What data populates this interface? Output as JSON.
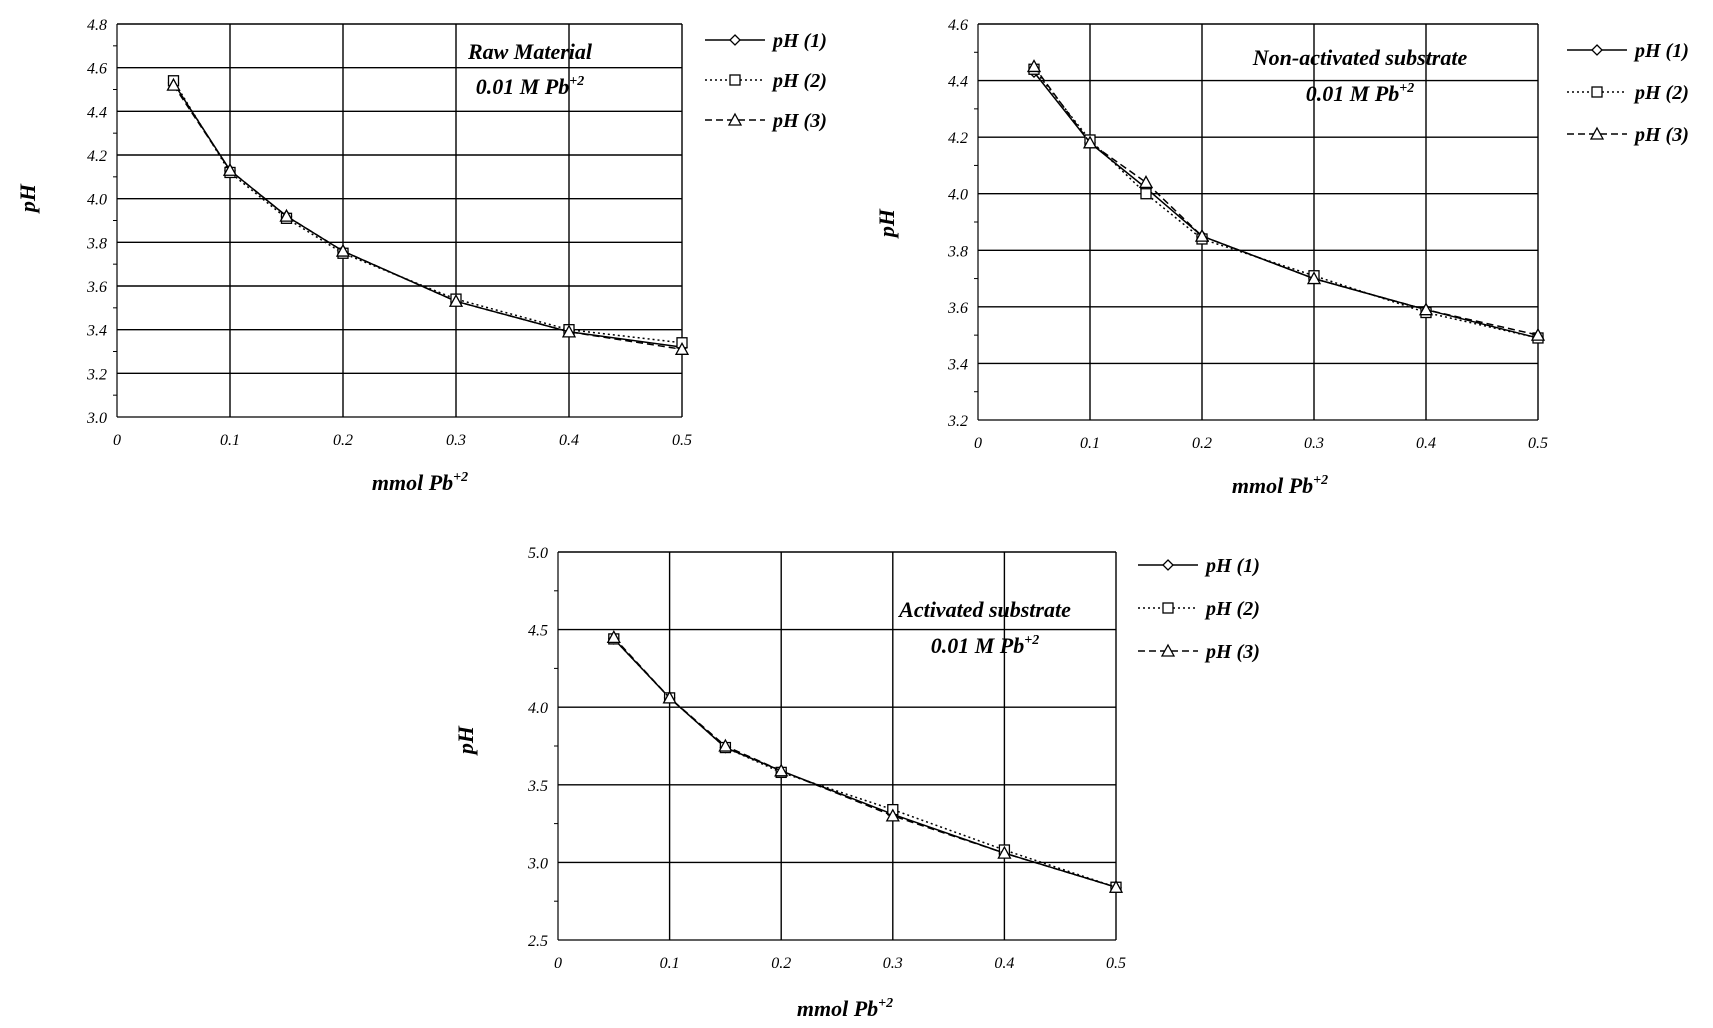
{
  "chart_data": [
    {
      "type": "line",
      "xlabel": "mmol Pb",
      "xlabel_sup": "+2",
      "ylabel": "pH",
      "xlim": [
        0,
        0.5
      ],
      "ylim": [
        3.0,
        4.8
      ],
      "xticks": [
        0,
        0.1,
        0.2,
        0.3,
        0.4,
        0.5
      ],
      "xtick_labels": [
        "0",
        "0.1",
        "0.2",
        "0.3",
        "0.4",
        "0.5"
      ],
      "yticks": [
        3.0,
        3.2,
        3.4,
        3.6,
        3.8,
        4.0,
        4.2,
        4.4,
        4.6,
        4.8
      ],
      "ytick_labels": [
        "3.0",
        "3.2",
        "3.4",
        "3.6",
        "3.8",
        "4.0",
        "4.2",
        "4.4",
        "4.6",
        "4.8"
      ],
      "grid": true,
      "legend_position": "right",
      "annotation_line1": "Raw Material",
      "annotation_line2": "0.01 M Pb",
      "annotation_sup": "+2",
      "x": [
        0.05,
        0.1,
        0.15,
        0.2,
        0.3,
        0.4,
        0.5
      ],
      "series": [
        {
          "name": "pH (1)",
          "marker": "diamond",
          "dash": "solid",
          "values": [
            4.53,
            4.13,
            3.92,
            3.76,
            3.53,
            3.39,
            3.32
          ]
        },
        {
          "name": "pH (2)",
          "marker": "square",
          "dash": "dotted",
          "values": [
            4.54,
            4.12,
            3.91,
            3.75,
            3.54,
            3.4,
            3.34
          ]
        },
        {
          "name": "pH (3)",
          "marker": "triangle",
          "dash": "dashed",
          "values": [
            4.52,
            4.13,
            3.92,
            3.76,
            3.53,
            3.39,
            3.31
          ]
        }
      ]
    },
    {
      "type": "line",
      "xlabel": "mmol Pb",
      "xlabel_sup": "+2",
      "ylabel": "pH",
      "xlim": [
        0,
        0.5
      ],
      "ylim": [
        3.2,
        4.6
      ],
      "xticks": [
        0,
        0.1,
        0.2,
        0.3,
        0.4,
        0.5
      ],
      "xtick_labels": [
        "0",
        "0.1",
        "0.2",
        "0.3",
        "0.4",
        "0.5"
      ],
      "yticks": [
        3.2,
        3.4,
        3.6,
        3.8,
        4.0,
        4.2,
        4.4,
        4.6
      ],
      "ytick_labels": [
        "3.2",
        "3.4",
        "3.6",
        "3.8",
        "4.0",
        "4.2",
        "4.4",
        "4.6"
      ],
      "grid": true,
      "legend_position": "right",
      "annotation_line1": "Non-activated substrate",
      "annotation_line2": "0.01 M Pb",
      "annotation_sup": "+2",
      "x": [
        0.05,
        0.1,
        0.15,
        0.2,
        0.3,
        0.4,
        0.5
      ],
      "series": [
        {
          "name": "pH (1)",
          "marker": "diamond",
          "dash": "solid",
          "values": [
            4.43,
            4.18,
            4.02,
            3.85,
            3.7,
            3.59,
            3.49
          ]
        },
        {
          "name": "pH (2)",
          "marker": "square",
          "dash": "dotted",
          "values": [
            4.44,
            4.19,
            4.0,
            3.84,
            3.71,
            3.58,
            3.49
          ]
        },
        {
          "name": "pH (3)",
          "marker": "triangle",
          "dash": "dashed",
          "values": [
            4.45,
            4.18,
            4.04,
            3.85,
            3.7,
            3.59,
            3.5
          ]
        }
      ]
    },
    {
      "type": "line",
      "xlabel": "mmol Pb",
      "xlabel_sup": "+2",
      "ylabel": "pH",
      "xlim": [
        0,
        0.5
      ],
      "ylim": [
        2.5,
        5.0
      ],
      "xticks": [
        0,
        0.1,
        0.2,
        0.3,
        0.4,
        0.5
      ],
      "xtick_labels": [
        "0",
        "0.1",
        "0.2",
        "0.3",
        "0.4",
        "0.5"
      ],
      "yticks": [
        2.5,
        3.0,
        3.5,
        4.0,
        4.5,
        5.0
      ],
      "ytick_labels": [
        "2.5",
        "3.0",
        "3.5",
        "4.0",
        "4.5",
        "5.0"
      ],
      "grid": true,
      "legend_position": "right",
      "annotation_line1": "Activated substrate",
      "annotation_line2": "0.01 M Pb",
      "annotation_sup": "+2",
      "x": [
        0.05,
        0.1,
        0.15,
        0.2,
        0.3,
        0.4,
        0.5
      ],
      "series": [
        {
          "name": "pH (1)",
          "marker": "diamond",
          "dash": "solid",
          "values": [
            4.44,
            4.06,
            3.74,
            3.59,
            3.31,
            3.06,
            2.84
          ]
        },
        {
          "name": "pH (2)",
          "marker": "square",
          "dash": "dotted",
          "values": [
            4.44,
            4.06,
            3.74,
            3.58,
            3.34,
            3.08,
            2.84
          ]
        },
        {
          "name": "pH (3)",
          "marker": "triangle",
          "dash": "dashed",
          "values": [
            4.45,
            4.06,
            3.75,
            3.59,
            3.3,
            3.06,
            2.84
          ]
        }
      ]
    }
  ]
}
